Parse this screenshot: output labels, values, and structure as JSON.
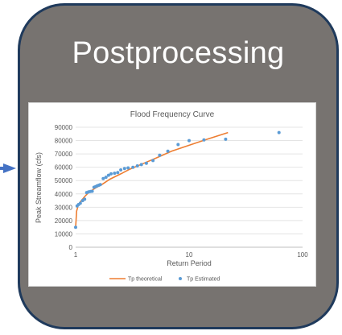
{
  "panel": {
    "title": "Postprocessing",
    "fill_color": "#777370",
    "border_color": "#1f3a5c",
    "arrow_color": "#4472c4"
  },
  "chart_data": {
    "type": "scatter",
    "title": "Flood Frequency Curve",
    "xlabel": "Return Period",
    "ylabel": "Peak Streamflow (cfs)",
    "xscale": "log",
    "xlim": [
      1,
      100
    ],
    "ylim": [
      0,
      90000
    ],
    "xticks": [
      "1",
      "10",
      "100"
    ],
    "yticks": [
      "0",
      "10000",
      "20000",
      "30000",
      "40000",
      "50000",
      "60000",
      "70000",
      "80000",
      "90000"
    ],
    "grid": "horizontal",
    "legend_position": "bottom",
    "series": [
      {
        "name": "Tp theoretical",
        "kind": "line",
        "color": "#ed7d31",
        "x": [
          1.0,
          1.02,
          1.05,
          1.1,
          1.2,
          1.3,
          1.5,
          1.7,
          2.0,
          2.5,
          3.0,
          4.0,
          5.0,
          7.0,
          10.0,
          15.0,
          22.0
        ],
        "y": [
          15000,
          27000,
          31000,
          34000,
          38000,
          41000,
          44500,
          47000,
          51000,
          55000,
          58500,
          63000,
          66500,
          72000,
          76500,
          81500,
          86000
        ]
      },
      {
        "name": "Tp Estimated",
        "kind": "scatter",
        "color": "#5b9bd5",
        "x": [
          1.0,
          1.03,
          1.06,
          1.1,
          1.15,
          1.2,
          1.25,
          1.3,
          1.35,
          1.4,
          1.45,
          1.5,
          1.55,
          1.6,
          1.65,
          1.75,
          1.85,
          1.95,
          2.05,
          2.2,
          2.35,
          2.5,
          2.7,
          2.9,
          3.2,
          3.5,
          3.8,
          4.2,
          4.8,
          5.5,
          6.5,
          8.0,
          10.0,
          13.5,
          21.0,
          62.0
        ],
        "y": [
          15000,
          31000,
          32000,
          33000,
          35000,
          36000,
          41000,
          41500,
          41800,
          42000,
          45000,
          45500,
          46000,
          46500,
          47000,
          51500,
          52500,
          54000,
          55000,
          55500,
          56000,
          58000,
          59000,
          59500,
          60000,
          61000,
          62000,
          63000,
          65000,
          69000,
          72000,
          77000,
          80000,
          80500,
          81000,
          86000
        ]
      }
    ]
  }
}
